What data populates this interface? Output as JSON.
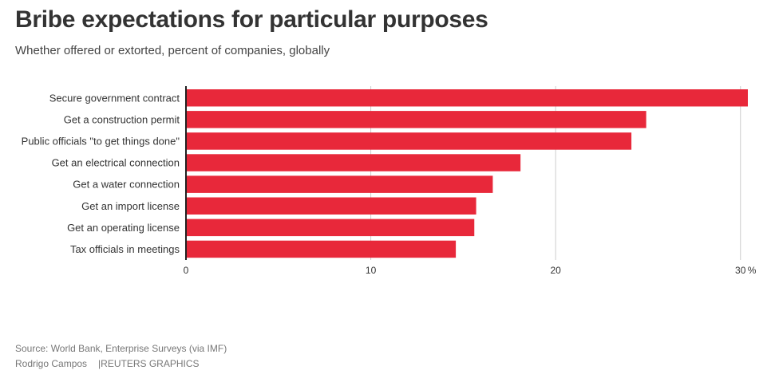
{
  "title": "Bribe expectations for particular purposes",
  "subtitle": "Whether offered or extorted, percent of companies, globally",
  "source": "Source: World Bank, Enterprise Surveys (via IMF)",
  "credit": {
    "author": "Rodrigo Campos",
    "agency": "|REUTERS GRAPHICS"
  },
  "colors": {
    "bar": "#e8283a",
    "grid": "#cccccc",
    "axis": "#222222",
    "text": "#333333"
  },
  "chart_data": {
    "type": "bar",
    "orientation": "horizontal",
    "categories": [
      "Secure government contract",
      "Get a construction permit",
      "Public officials \"to get things done\"",
      "Get an electrical connection",
      "Get a water connection",
      "Get an import license",
      "Get an operating license",
      "Tax officials in meetings"
    ],
    "values": [
      30.4,
      24.9,
      24.1,
      18.1,
      16.6,
      15.7,
      15.6,
      14.6
    ],
    "xlim": [
      0,
      30.4
    ],
    "xticks": [
      0,
      10,
      20,
      30
    ],
    "xtick_labels": [
      "0",
      "10",
      "20",
      "30"
    ],
    "unit": "%",
    "grid": true
  }
}
